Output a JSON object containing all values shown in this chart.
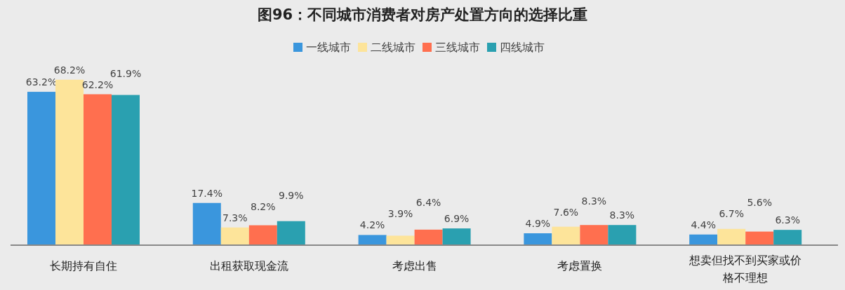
{
  "chart_data": {
    "type": "bar",
    "title": "图96：不同城市消费者对房产处置方向的选择比重",
    "categories": [
      "长期持有自住",
      "出租获取现金流",
      "考虑出售",
      "考虑置换",
      "想卖但找不到买家或价格不理想"
    ],
    "series": [
      {
        "name": "一线城市",
        "color": "#3a96dd",
        "values": [
          63.2,
          17.4,
          4.2,
          4.9,
          4.4
        ],
        "value_labels": [
          "63.2%",
          "17.4%",
          "4.2%",
          "4.9%",
          "4.4%"
        ]
      },
      {
        "name": "二线城市",
        "color": "#fde49a",
        "values": [
          68.2,
          7.3,
          3.9,
          7.6,
          6.7
        ],
        "value_labels": [
          "68.2%",
          "7.3%",
          "3.9%",
          "7.6%",
          "6.7%"
        ]
      },
      {
        "name": "三线城市",
        "color": "#ff6f4f",
        "values": [
          62.2,
          8.2,
          6.4,
          8.3,
          5.6
        ],
        "value_labels": [
          "62.2%",
          "8.2%",
          "6.4%",
          "8.3%",
          "5.6%"
        ]
      },
      {
        "name": "四线城市",
        "color": "#2aa0b0",
        "values": [
          61.9,
          9.9,
          6.9,
          8.3,
          6.3
        ],
        "value_labels": [
          "61.9%",
          "9.9%",
          "6.9%",
          "8.3%",
          "6.3%"
        ]
      }
    ],
    "legend": "top"
  }
}
